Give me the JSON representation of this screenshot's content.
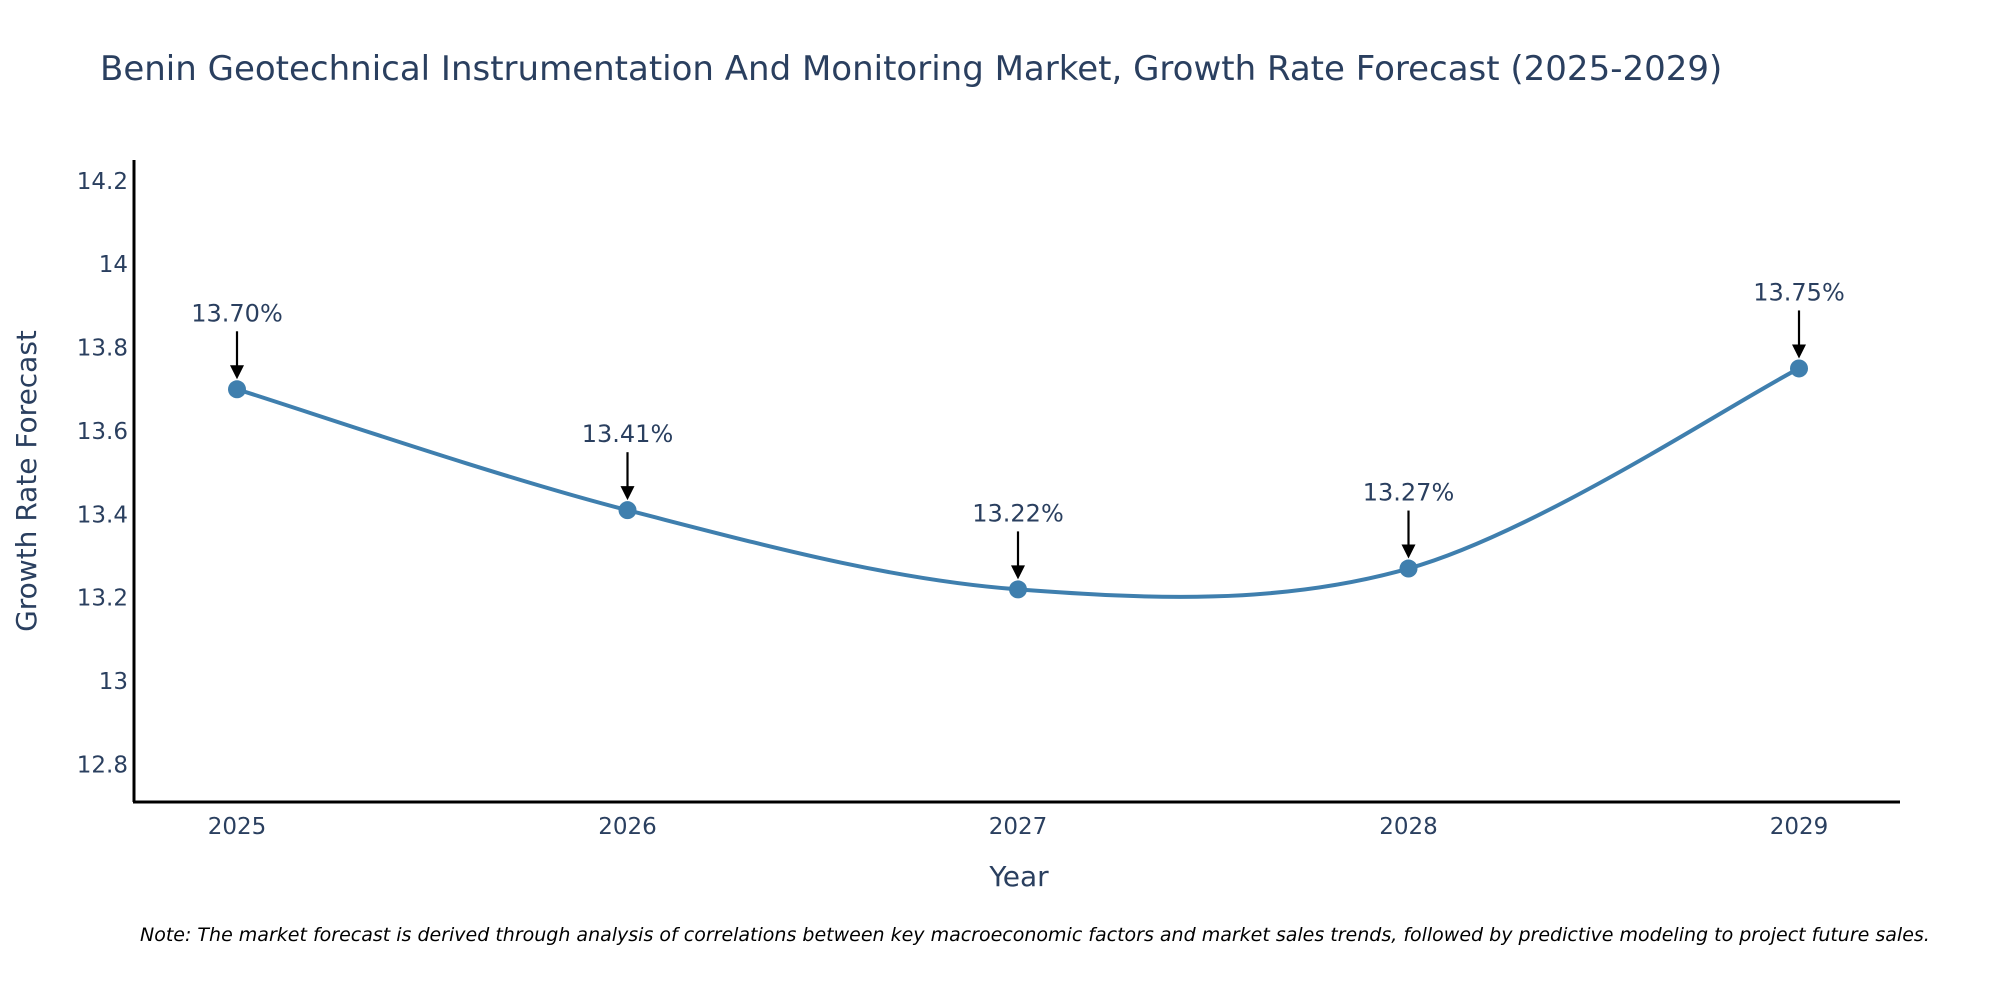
{
  "chart_data": {
    "type": "line",
    "title": "Benin Geotechnical Instrumentation And Monitoring Market, Growth Rate Forecast (2025-2029)",
    "xlabel": "Year",
    "ylabel": "Growth Rate Forecast",
    "categories": [
      "2025",
      "2026",
      "2027",
      "2028",
      "2029"
    ],
    "values": [
      13.7,
      13.41,
      13.22,
      13.27,
      13.75
    ],
    "data_labels": [
      "13.70%",
      "13.41%",
      "13.22%",
      "13.27%",
      "13.75%"
    ],
    "y_ticks": [
      12.8,
      13,
      13.2,
      13.4,
      13.6,
      13.8,
      14,
      14.2
    ],
    "y_tick_labels": [
      "12.8",
      "13",
      "13.2",
      "13.4",
      "13.6",
      "13.8",
      "14",
      "14.2"
    ],
    "ylim": [
      12.71,
      14.25
    ],
    "grid": false,
    "legend": "none",
    "line_color": "#3f7fae",
    "marker_color": "#3f7fae",
    "annotation_arrow_color": "#000000"
  },
  "note": "Note: The market forecast is derived through analysis of correlations between key macroeconomic factors and market sales trends, followed by predictive modeling to project future sales."
}
